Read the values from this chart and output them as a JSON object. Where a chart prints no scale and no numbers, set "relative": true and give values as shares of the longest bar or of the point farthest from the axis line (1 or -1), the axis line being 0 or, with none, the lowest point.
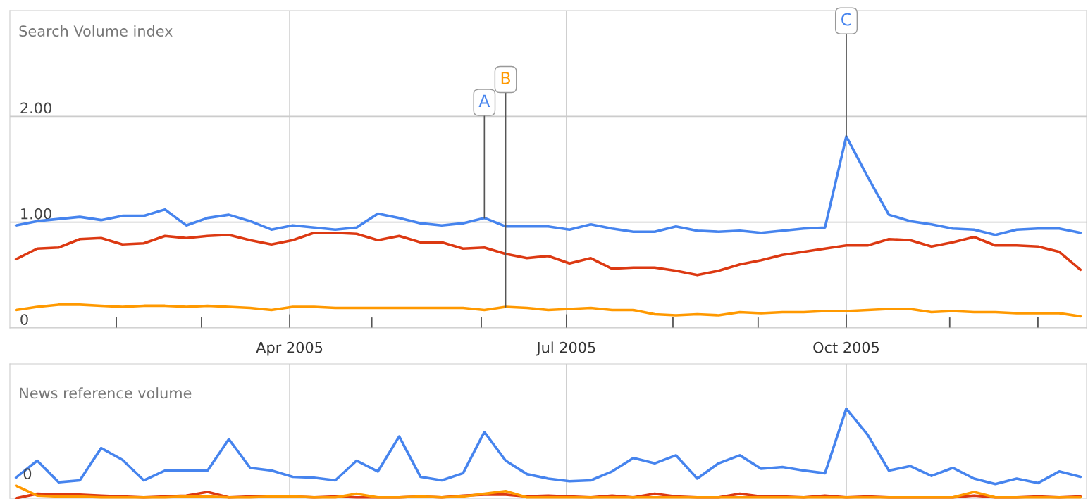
{
  "chart_data": [
    {
      "type": "line",
      "title": "Search Volume index",
      "x": [
        "2005-01-01",
        "2005-01-08",
        "2005-01-15",
        "2005-01-22",
        "2005-01-29",
        "2005-02-05",
        "2005-02-12",
        "2005-02-19",
        "2005-02-26",
        "2005-03-05",
        "2005-03-12",
        "2005-03-19",
        "2005-03-26",
        "2005-04-02",
        "2005-04-09",
        "2005-04-16",
        "2005-04-23",
        "2005-04-30",
        "2005-05-07",
        "2005-05-14",
        "2005-05-21",
        "2005-05-28",
        "2005-06-04",
        "2005-06-11",
        "2005-06-18",
        "2005-06-25",
        "2005-07-02",
        "2005-07-09",
        "2005-07-16",
        "2005-07-23",
        "2005-07-30",
        "2005-08-06",
        "2005-08-13",
        "2005-08-20",
        "2005-08-27",
        "2005-09-03",
        "2005-09-10",
        "2005-09-17",
        "2005-09-24",
        "2005-10-01",
        "2005-10-08",
        "2005-10-15",
        "2005-10-22",
        "2005-10-29",
        "2005-11-05",
        "2005-11-12",
        "2005-11-19",
        "2005-11-26",
        "2005-12-03",
        "2005-12-10",
        "2005-12-17"
      ],
      "series": [
        {
          "color": "#4684ee",
          "values": [
            0.97,
            1.01,
            1.03,
            1.05,
            1.02,
            1.06,
            1.06,
            1.12,
            0.97,
            1.04,
            1.07,
            1.01,
            0.93,
            0.97,
            0.95,
            0.93,
            0.95,
            1.08,
            1.04,
            0.99,
            0.97,
            0.99,
            1.04,
            0.96,
            0.96,
            0.96,
            0.93,
            0.98,
            0.94,
            0.91,
            0.91,
            0.96,
            0.92,
            0.91,
            0.92,
            0.9,
            0.92,
            0.94,
            0.95,
            1.81,
            1.43,
            1.07,
            1.01,
            0.98,
            0.94,
            0.93,
            0.88,
            0.93,
            0.94,
            0.94,
            0.9
          ]
        },
        {
          "color": "#dc3912",
          "values": [
            0.65,
            0.75,
            0.76,
            0.84,
            0.85,
            0.79,
            0.8,
            0.87,
            0.85,
            0.87,
            0.88,
            0.83,
            0.79,
            0.83,
            0.9,
            0.9,
            0.89,
            0.83,
            0.87,
            0.81,
            0.81,
            0.75,
            0.76,
            0.7,
            0.66,
            0.68,
            0.61,
            0.66,
            0.56,
            0.57,
            0.57,
            0.54,
            0.5,
            0.54,
            0.6,
            0.64,
            0.69,
            0.72,
            0.75,
            0.78,
            0.78,
            0.84,
            0.83,
            0.77,
            0.81,
            0.86,
            0.78,
            0.78,
            0.77,
            0.72,
            0.55
          ]
        },
        {
          "color": "#ff9900",
          "values": [
            0.17,
            0.2,
            0.22,
            0.22,
            0.21,
            0.2,
            0.21,
            0.21,
            0.2,
            0.21,
            0.2,
            0.19,
            0.17,
            0.2,
            0.2,
            0.19,
            0.19,
            0.19,
            0.19,
            0.19,
            0.19,
            0.19,
            0.17,
            0.2,
            0.19,
            0.17,
            0.18,
            0.19,
            0.17,
            0.17,
            0.13,
            0.12,
            0.13,
            0.12,
            0.15,
            0.14,
            0.15,
            0.15,
            0.16,
            0.16,
            0.17,
            0.18,
            0.18,
            0.15,
            0.16,
            0.15,
            0.15,
            0.14,
            0.14,
            0.14,
            0.11
          ]
        }
      ],
      "xlim": [
        "2004-12-30",
        "2005-12-19"
      ],
      "xticks": [
        {
          "value": "2005-02-03",
          "label": null
        },
        {
          "value": "2005-03-03",
          "label": null
        },
        {
          "value": "2005-04-01",
          "label": "Apr 2005"
        },
        {
          "value": "2005-04-28",
          "label": null
        },
        {
          "value": "2005-06-03",
          "label": null
        },
        {
          "value": "2005-07-01",
          "label": "Jul 2005"
        },
        {
          "value": "2005-08-05",
          "label": null
        },
        {
          "value": "2005-09-02",
          "label": null
        },
        {
          "value": "2005-10-01",
          "label": "Oct 2005"
        },
        {
          "value": "2005-11-04",
          "label": null
        },
        {
          "value": "2005-12-03",
          "label": null
        }
      ],
      "ylim": [
        0,
        3
      ],
      "yticks": [
        0,
        {
          "value": 1,
          "label": "1.00"
        },
        {
          "value": 2,
          "label": "2.00"
        }
      ],
      "grid": true,
      "annotations": [
        {
          "text": "A",
          "x": "2005-06-04",
          "y": 1.04
        },
        {
          "text": "B",
          "x": "2005-06-11",
          "y": 0.2
        },
        {
          "text": "C",
          "x": "2005-10-01",
          "y": 1.81
        }
      ]
    },
    {
      "type": "line",
      "title": "News reference volume",
      "relative": true,
      "x": [
        "2005-01-01",
        "2005-01-08",
        "2005-01-15",
        "2005-01-22",
        "2005-01-29",
        "2005-02-05",
        "2005-02-12",
        "2005-02-19",
        "2005-02-26",
        "2005-03-05",
        "2005-03-12",
        "2005-03-19",
        "2005-03-26",
        "2005-04-02",
        "2005-04-09",
        "2005-04-16",
        "2005-04-23",
        "2005-04-30",
        "2005-05-07",
        "2005-05-14",
        "2005-05-21",
        "2005-05-28",
        "2005-06-04",
        "2005-06-11",
        "2005-06-18",
        "2005-06-25",
        "2005-07-02",
        "2005-07-09",
        "2005-07-16",
        "2005-07-23",
        "2005-07-30",
        "2005-08-06",
        "2005-08-13",
        "2005-08-20",
        "2005-08-27",
        "2005-09-03",
        "2005-09-10",
        "2005-09-17",
        "2005-09-24",
        "2005-10-01",
        "2005-10-08",
        "2005-10-15",
        "2005-10-22",
        "2005-10-29",
        "2005-11-05",
        "2005-11-12",
        "2005-11-19",
        "2005-11-26",
        "2005-12-03",
        "2005-12-10",
        "2005-12-17"
      ],
      "series": [
        {
          "color": "#4684ee",
          "values": [
            0.23,
            0.42,
            0.18,
            0.2,
            0.56,
            0.43,
            0.2,
            0.31,
            0.31,
            0.31,
            0.66,
            0.34,
            0.31,
            0.24,
            0.23,
            0.2,
            0.42,
            0.3,
            0.69,
            0.24,
            0.2,
            0.28,
            0.74,
            0.42,
            0.27,
            0.22,
            0.19,
            0.2,
            0.3,
            0.45,
            0.39,
            0.48,
            0.22,
            0.39,
            0.48,
            0.33,
            0.35,
            0.31,
            0.28,
            1,
            0.71,
            0.31,
            0.36,
            0.25,
            0.34,
            0.22,
            0.16,
            0.22,
            0.17,
            0.3,
            0.24
          ]
        },
        {
          "color": "#dc3912",
          "values": [
            0.0,
            0.05,
            0.04,
            0.04,
            0.03,
            0.02,
            0.01,
            0.02,
            0.03,
            0.07,
            0.01,
            0.02,
            0.02,
            0.02,
            0.01,
            0.02,
            0.01,
            0.01,
            0.01,
            0.02,
            0.01,
            0.03,
            0.04,
            0.04,
            0.02,
            0.03,
            0.02,
            0.01,
            0.03,
            0.01,
            0.05,
            0.02,
            0.01,
            0.01,
            0.05,
            0.02,
            0.02,
            0.01,
            0.03,
            0.01,
            0.02,
            0.01,
            0.01,
            0.01,
            0.01,
            0.03,
            0.01,
            0.01,
            0.02,
            0.01,
            0.02
          ]
        },
        {
          "color": "#ff9900",
          "values": [
            0.14,
            0.03,
            0.02,
            0.02,
            0.01,
            0.01,
            0.01,
            0.01,
            0.02,
            0.02,
            0.01,
            0.01,
            0.02,
            0.02,
            0.01,
            0.01,
            0.05,
            0.01,
            0.01,
            0.02,
            0.01,
            0.02,
            0.05,
            0.08,
            0.01,
            0.01,
            0.01,
            0.01,
            0.01,
            0.01,
            0.01,
            0.01,
            0.01,
            0.01,
            0.01,
            0.01,
            0.01,
            0.01,
            0.01,
            0.01,
            0.01,
            0.01,
            0.01,
            0.01,
            0.01,
            0.07,
            0.01,
            0.01,
            0.01,
            0.01,
            0.01
          ]
        }
      ],
      "xlim": [
        "2004-12-30",
        "2005-12-19"
      ],
      "ref_lines": [
        {
          "axis": "x",
          "value": "2005-04-01",
          "color": "#cccccc"
        },
        {
          "axis": "x",
          "value": "2005-07-01",
          "color": "#cccccc"
        },
        {
          "axis": "x",
          "value": "2005-10-01",
          "color": "#cccccc"
        }
      ],
      "annotations": [
        "0"
      ]
    }
  ]
}
